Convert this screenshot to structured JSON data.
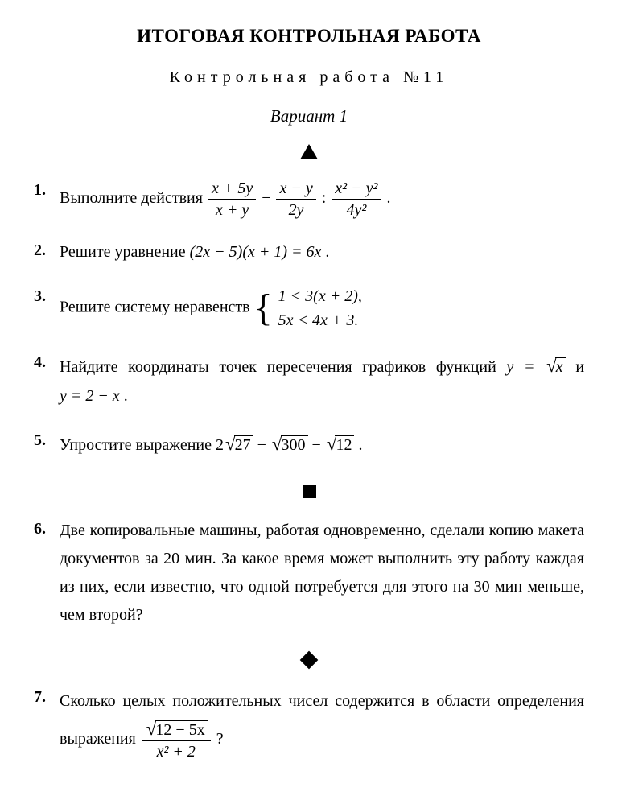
{
  "title": "ИТОГОВАЯ КОНТРОЛЬНАЯ РАБОТА",
  "subtitle": "Контрольная работа №11",
  "variant": "Вариант 1",
  "problems": {
    "p1": {
      "num": "1.",
      "label": "Выполните действия ",
      "f1n": "x + 5y",
      "f1d": "x + y",
      "f2n": "x − y",
      "f2d": "2y",
      "f3n": "x² − y²",
      "f3d": "4y²"
    },
    "p2": {
      "num": "2.",
      "label": "Решите уравнение ",
      "eq": "(2x − 5)(x + 1) = 6x",
      "dot": " ."
    },
    "p3": {
      "num": "3.",
      "label": "Решите систему неравенств ",
      "row1": "1 < 3(x + 2),",
      "row2": "5x < 4x + 3."
    },
    "p4": {
      "num": "4.",
      "text": "Найдите координаты точек пересечения графиков функций ",
      "and": " и ",
      "eq1a": "y = ",
      "eq1b": "x",
      "eq2": "y = 2 − x",
      "dot": " ."
    },
    "p5": {
      "num": "5.",
      "label": "Упростите выражение ",
      "c1": "2",
      "r1": "27",
      "r2": "300",
      "r3": "12",
      "dot": " ."
    },
    "p6": {
      "num": "6.",
      "text": "Две копировальные машины, работая одновременно, сделали копию макета документов за 20 мин. За какое время может выполнить эту работу каждая из них, если известно, что одной потребуется для этого на 30 мин меньше, чем второй?"
    },
    "p7": {
      "num": "7.",
      "text": "Сколько целых положительных чисел содержится в области определения выражения ",
      "fn_rad": "12 − 5x",
      "fd": "x² + 2",
      "q": " ?"
    }
  }
}
